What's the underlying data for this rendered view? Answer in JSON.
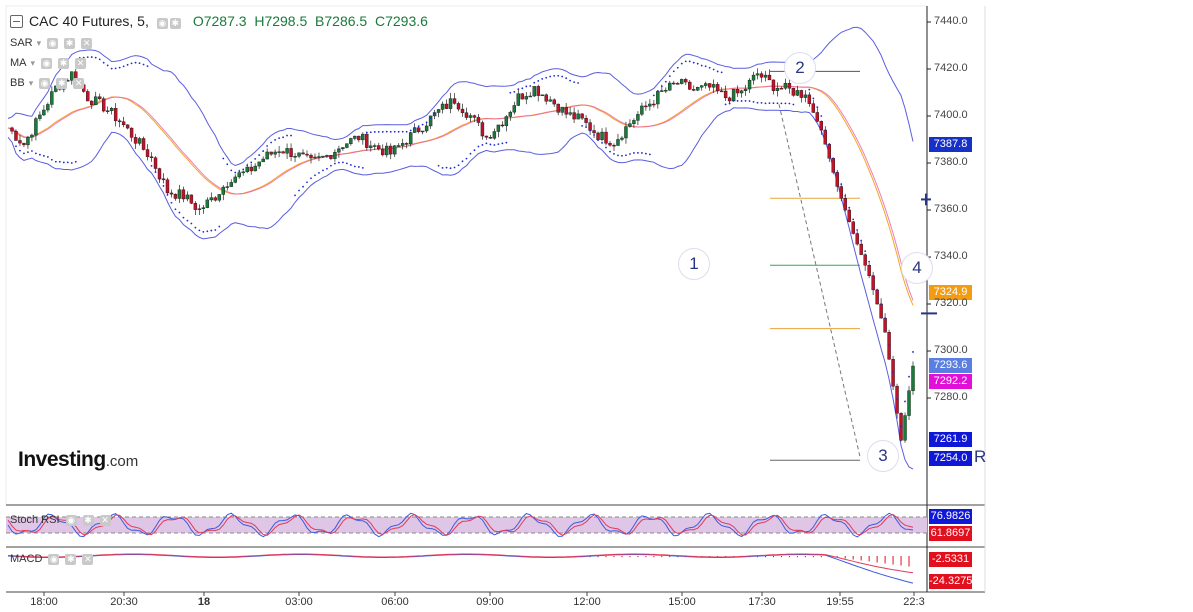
{
  "header": {
    "symbol": "CAC 40 Futures, 5,",
    "open": "O7287.3",
    "high": "H7298.5",
    "low": "B7286.5",
    "close": "C7293.6"
  },
  "indicators": {
    "sar": "SAR",
    "ma": "MA",
    "bb": "BB",
    "stoch_rsi": "Stoch RSI",
    "macd": "MACD"
  },
  "logo": {
    "brand": "Investing",
    "suffix": ".com"
  },
  "waves": [
    "1",
    "2",
    "3",
    "4"
  ],
  "price_labels": {
    "bb_upper": "7387.8",
    "ma": "7324.9",
    "last": "7293.6",
    "sar": "7292.2",
    "low1": "7261.9",
    "low2": "7254.0",
    "stoch_k": "76.9826",
    "stoch_d": "61.8697",
    "macd_signal": "-2.5331",
    "macd_line": "-24.3275"
  },
  "right_marker": "R",
  "colors": {
    "up": "#1a7a3a",
    "down": "#c0132a",
    "bb": "#5a5ee0",
    "ma": "#f5a623",
    "sar": "#1c2bd0",
    "stoch_fill": "#e0c6e6",
    "fib_orange": "#e8a33a",
    "fib_green": "#34a853",
    "fib_gray": "#666666"
  },
  "chart_data": {
    "type": "candlestick",
    "title": "CAC 40 Futures, 5,",
    "y_ticks": [
      "7440.0",
      "7420.0",
      "7400.0",
      "7380.0",
      "7360.0",
      "7340.0",
      "7320.0",
      "7300.0",
      "7280.0"
    ],
    "x_ticks": [
      "18:00",
      "20:30",
      "18",
      "03:00",
      "06:00",
      "09:00",
      "12:00",
      "15:00",
      "17:30",
      "19:55",
      "22:3"
    ],
    "ylim": [
      7247,
      7447
    ],
    "close_path_anchors": [
      [
        0,
        7395
      ],
      [
        4,
        7388
      ],
      [
        8,
        7400
      ],
      [
        12,
        7412
      ],
      [
        16,
        7418
      ],
      [
        20,
        7408
      ],
      [
        24,
        7404
      ],
      [
        28,
        7398
      ],
      [
        32,
        7390
      ],
      [
        36,
        7382
      ],
      [
        40,
        7368
      ],
      [
        44,
        7366
      ],
      [
        48,
        7360
      ],
      [
        52,
        7366
      ],
      [
        56,
        7374
      ],
      [
        60,
        7376
      ],
      [
        64,
        7382
      ],
      [
        68,
        7386
      ],
      [
        72,
        7384
      ],
      [
        76,
        7380
      ],
      [
        80,
        7383
      ],
      [
        84,
        7388
      ],
      [
        88,
        7391
      ],
      [
        92,
        7387
      ],
      [
        96,
        7384
      ],
      [
        100,
        7390
      ],
      [
        104,
        7396
      ],
      [
        108,
        7402
      ],
      [
        112,
        7407
      ],
      [
        116,
        7400
      ],
      [
        120,
        7391
      ],
      [
        124,
        7398
      ],
      [
        128,
        7408
      ],
      [
        132,
        7412
      ],
      [
        136,
        7407
      ],
      [
        140,
        7401
      ],
      [
        144,
        7398
      ],
      [
        148,
        7392
      ],
      [
        152,
        7389
      ],
      [
        156,
        7397
      ],
      [
        160,
        7404
      ],
      [
        164,
        7410
      ],
      [
        168,
        7414
      ],
      [
        172,
        7411
      ],
      [
        176,
        7412
      ],
      [
        180,
        7408
      ],
      [
        184,
        7410
      ],
      [
        188,
        7418
      ],
      [
        192,
        7413
      ],
      [
        196,
        7411
      ],
      [
        200,
        7409
      ],
      [
        204,
        7394
      ],
      [
        208,
        7370
      ],
      [
        212,
        7350
      ],
      [
        216,
        7332
      ],
      [
        220,
        7308
      ],
      [
        224,
        7262
      ],
      [
        227,
        7293.6
      ]
    ],
    "fib_levels": [
      7365,
      7336.5,
      7309.5,
      7253.5
    ]
  }
}
